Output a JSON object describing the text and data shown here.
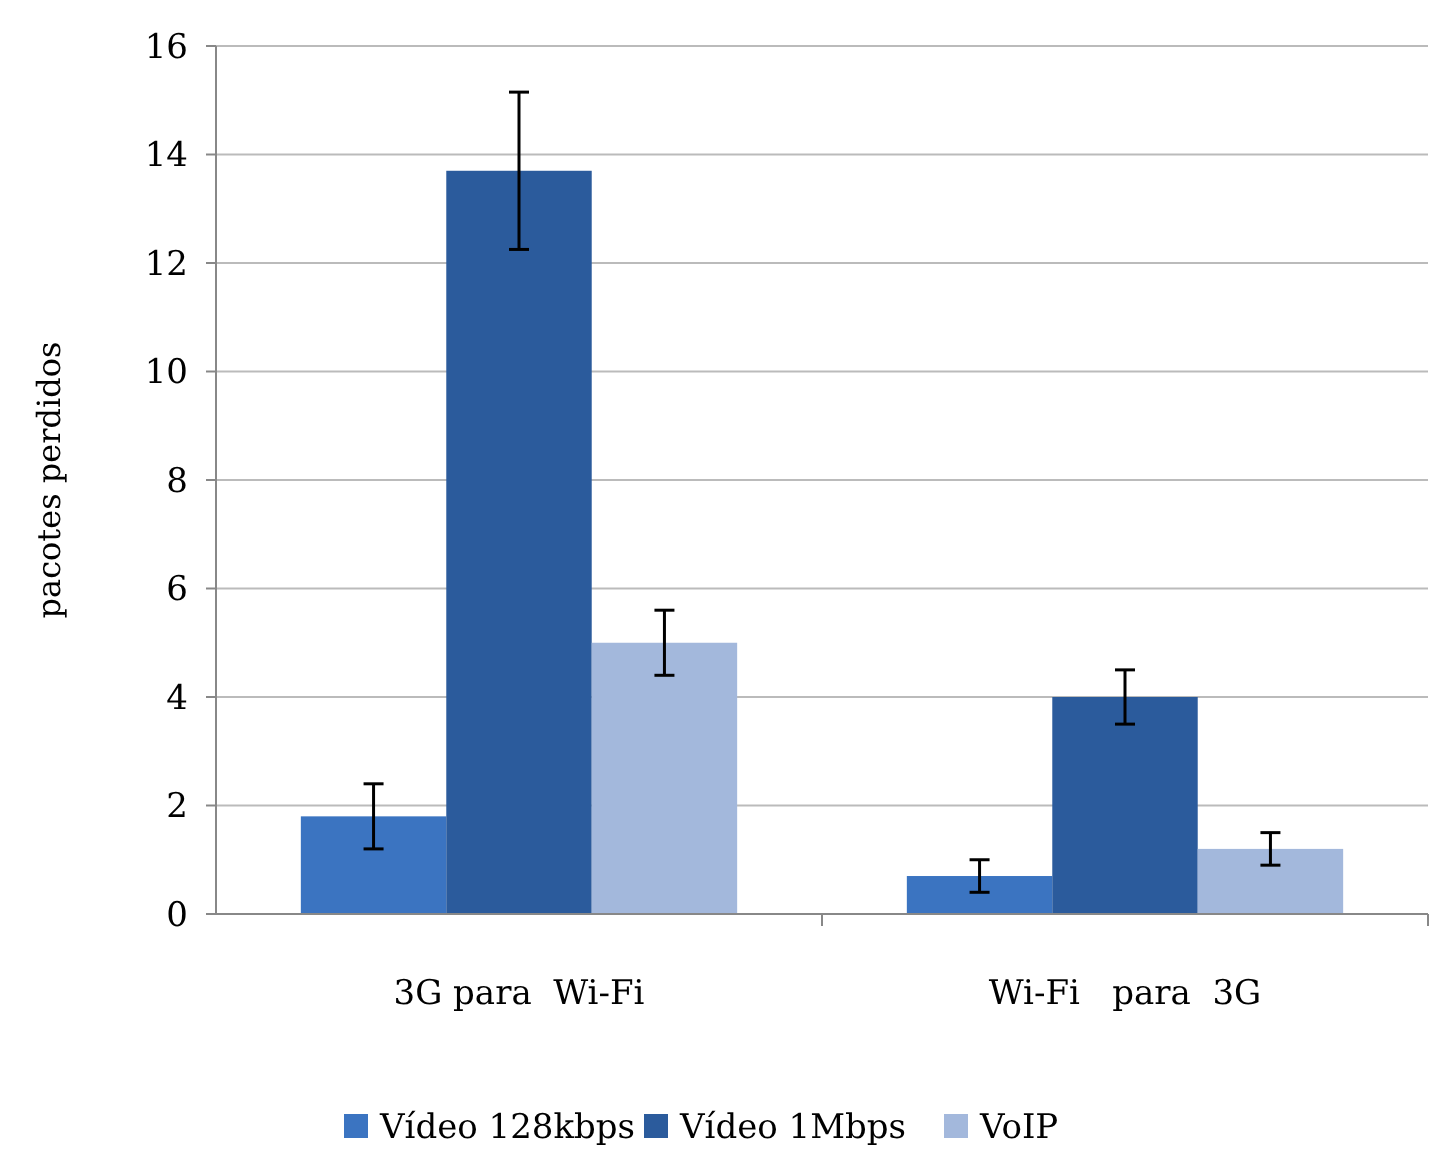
{
  "chart_data": {
    "type": "bar",
    "ylabel": "pacotes perdidos",
    "categories": [
      "3G para  Wi-Fi",
      "Wi-Fi   para  3G"
    ],
    "series": [
      {
        "name": "Vídeo 128kbps",
        "color": "#3b74c1",
        "values": [
          1.8,
          0.7
        ],
        "errors": [
          0.6,
          0.3
        ]
      },
      {
        "name": "Vídeo 1Mbps",
        "color": "#2b5b9c",
        "values": [
          13.7,
          4.0
        ],
        "errors": [
          1.45,
          0.5
        ]
      },
      {
        "name": "VoIP",
        "color": "#a3b8dc",
        "values": [
          5.0,
          1.2
        ],
        "errors": [
          0.6,
          0.3
        ]
      }
    ],
    "ylim": [
      0,
      16
    ],
    "yticks": [
      0,
      2,
      4,
      6,
      8,
      10,
      12,
      14,
      16
    ],
    "grid": "y",
    "legend": "bottom"
  }
}
